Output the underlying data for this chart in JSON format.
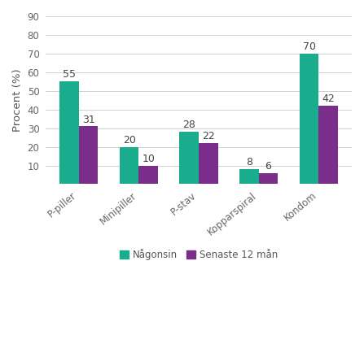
{
  "categories": [
    "P-piller",
    "Minipiller",
    "P-stav",
    "Kopparspiral",
    "Kondom"
  ],
  "nagonsin": [
    55,
    20,
    28,
    8,
    70
  ],
  "senaste12": [
    31,
    10,
    22,
    6,
    42
  ],
  "nagonsin_color": "#1aad8d",
  "senaste12_color": "#7b2d8b",
  "ylabel": "Procent (%)",
  "ylim": [
    0,
    90
  ],
  "yticks": [
    0,
    10,
    20,
    30,
    40,
    50,
    60,
    70,
    80,
    90
  ],
  "legend_nagonsin": "Någonsin",
  "legend_senaste": "Senaste 12 mån",
  "bar_width": 0.32,
  "background_color": "#ffffff",
  "label_fontsize": 9,
  "tick_fontsize": 8.5,
  "ylabel_fontsize": 9.5,
  "grid_color": "#d0d0d0"
}
